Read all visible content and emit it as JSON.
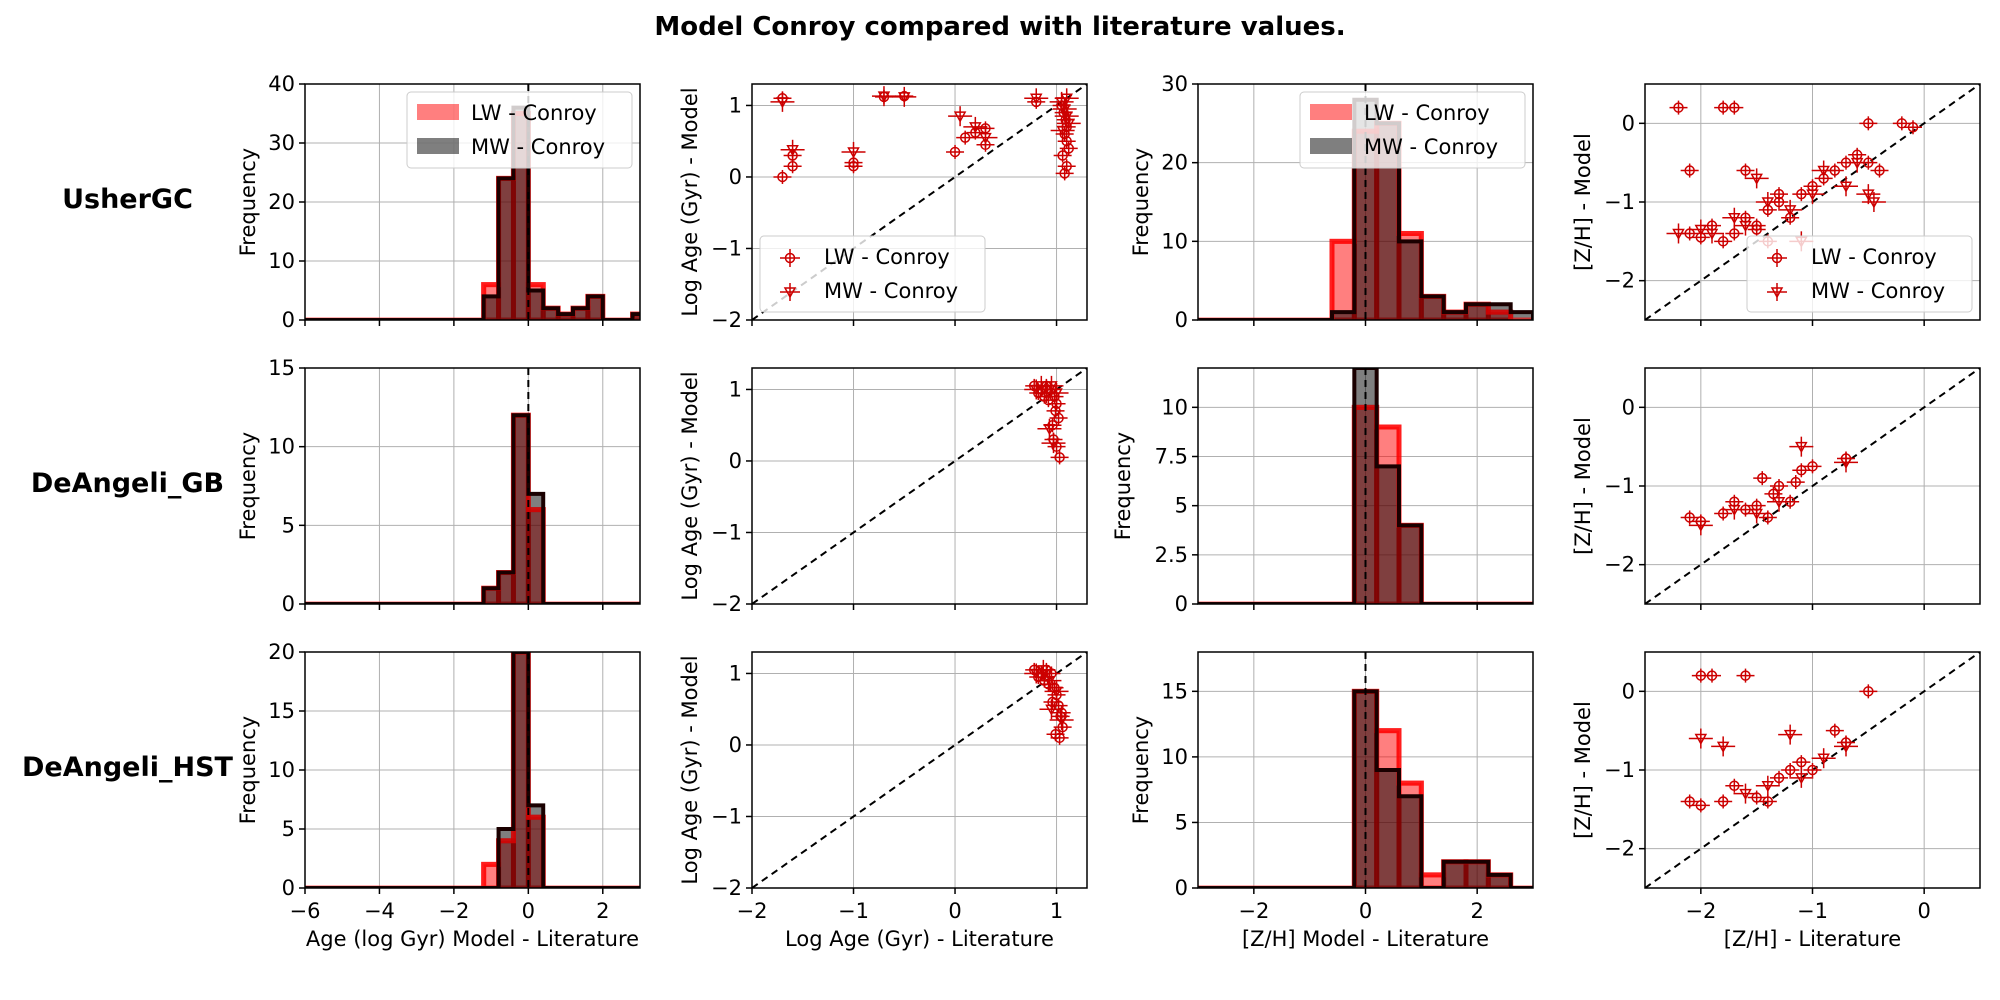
{
  "title": "Model Conroy compared with literature values.",
  "rows": [
    "UsherGC",
    "DeAngeli_GB",
    "DeAngeli_HST"
  ],
  "colors": {
    "lw": "#ff0000",
    "mw": "#000000",
    "err": "#cc0000",
    "grid": "#b0b0b0"
  },
  "legend": {
    "lw": "LW - Conroy",
    "mw": "MW - Conroy"
  },
  "chart_data": [
    {
      "type": "bar",
      "panel": "UsherGC-age-hist",
      "xlabel": "",
      "ylabel": "Frequency",
      "xlim": [
        -6,
        3
      ],
      "ylim": [
        0,
        40
      ],
      "yticks": [
        0,
        10,
        20,
        30,
        40
      ],
      "xticks": [
        -6,
        -4,
        -2,
        0,
        2
      ],
      "bin_width": 0.4,
      "legend": "top-right",
      "grid": true,
      "vline": 0,
      "series": [
        {
          "name": "LW - Conroy",
          "x": [
            -1.2,
            -0.8,
            -0.4,
            0.0,
            0.4,
            0.8,
            1.2,
            1.6,
            2.0,
            2.4,
            2.8
          ],
          "values": [
            6,
            24,
            35,
            6,
            2,
            1,
            2,
            4,
            0,
            0,
            1
          ]
        },
        {
          "name": "MW - Conroy",
          "x": [
            -1.2,
            -0.8,
            -0.4,
            0.0,
            0.4,
            0.8,
            1.2,
            1.6,
            2.0,
            2.4,
            2.8
          ],
          "values": [
            4,
            24,
            36,
            5,
            2,
            1,
            2,
            4,
            0,
            0,
            1
          ]
        }
      ]
    },
    {
      "type": "scatter",
      "panel": "UsherGC-age-scatter",
      "xlabel": "",
      "ylabel": "Log Age (Gyr) - Model",
      "xlim": [
        -2,
        1.3
      ],
      "ylim": [
        -2,
        1.3
      ],
      "yticks": [
        -2,
        -1,
        0,
        1
      ],
      "xticks": [
        -2,
        -1,
        0,
        1
      ],
      "legend": "lower-left",
      "grid": true,
      "one_to_one": true,
      "series": [
        {
          "name": "LW - Conroy",
          "x": [
            -1.7,
            -1.7,
            -1.6,
            -1.6,
            -1.0,
            -1.0,
            -0.7,
            -0.5,
            0.0,
            0.1,
            0.2,
            0.3,
            0.3,
            0.8,
            1.05,
            1.07,
            1.09,
            1.1,
            1.08,
            1.1,
            1.12,
            1.06,
            1.1,
            1.08
          ],
          "y": [
            1.1,
            0.0,
            0.3,
            0.15,
            0.2,
            0.15,
            1.12,
            1.13,
            0.35,
            0.55,
            0.62,
            0.45,
            0.68,
            1.05,
            1.0,
            0.9,
            0.8,
            0.7,
            0.6,
            0.5,
            0.4,
            0.3,
            0.15,
            0.05
          ]
        },
        {
          "name": "MW - Conroy",
          "x": [
            -1.7,
            -1.6,
            -1.0,
            -0.7,
            -0.5,
            0.05,
            0.2,
            0.3,
            0.8,
            1.05,
            1.08,
            1.1,
            1.12,
            1.06,
            1.1
          ],
          "y": [
            1.05,
            0.38,
            0.35,
            1.13,
            1.12,
            0.85,
            0.7,
            0.55,
            1.1,
            1.05,
            0.95,
            0.85,
            0.75,
            0.65,
            1.1
          ]
        }
      ]
    },
    {
      "type": "bar",
      "panel": "UsherGC-zh-hist",
      "xlabel": "",
      "ylabel": "Frequency",
      "xlim": [
        -3,
        3
      ],
      "ylim": [
        0,
        30
      ],
      "yticks": [
        0,
        10,
        20,
        30
      ],
      "xticks": [
        -2,
        0,
        2
      ],
      "bin_width": 0.4,
      "legend": "top-right",
      "grid": true,
      "vline": 0,
      "series": [
        {
          "name": "LW - Conroy",
          "x": [
            -1.0,
            -0.6,
            -0.2,
            0.2,
            0.6,
            1.0,
            1.4,
            1.8,
            2.2,
            2.6
          ],
          "values": [
            0,
            10,
            24,
            25,
            11,
            3,
            1,
            2,
            1,
            0
          ]
        },
        {
          "name": "MW - Conroy",
          "x": [
            -1.0,
            -0.6,
            -0.2,
            0.2,
            0.6,
            1.0,
            1.4,
            1.8,
            2.2,
            2.6
          ],
          "values": [
            0,
            1,
            28,
            25,
            10,
            3,
            1,
            2,
            2,
            1
          ]
        }
      ]
    },
    {
      "type": "scatter",
      "panel": "UsherGC-zh-scatter",
      "xlabel": "",
      "ylabel": "[Z/H] - Model",
      "xlim": [
        -2.5,
        0.5
      ],
      "ylim": [
        -2.5,
        0.5
      ],
      "yticks": [
        -2,
        -1,
        0
      ],
      "xticks": [
        -2,
        -1,
        0
      ],
      "legend": "lower-right",
      "grid": true,
      "one_to_one": true,
      "series": [
        {
          "name": "LW - Conroy",
          "x": [
            -2.2,
            -2.1,
            -2.0,
            -1.9,
            -1.8,
            -1.7,
            -1.6,
            -1.5,
            -1.4,
            -1.3,
            -1.2,
            -1.1,
            -1.0,
            -0.9,
            -0.8,
            -0.7,
            -0.6,
            -0.5,
            -0.4,
            -1.8,
            -1.7,
            -1.6,
            -1.3,
            -0.5,
            -0.2,
            -0.1,
            -1.5,
            -1.4,
            -2.1
          ],
          "y": [
            0.2,
            -1.4,
            -1.45,
            -1.3,
            -1.5,
            -1.4,
            -1.2,
            -1.35,
            -1.1,
            -1.0,
            -1.2,
            -0.9,
            -0.8,
            -0.7,
            -0.6,
            -0.5,
            -0.4,
            -0.5,
            -0.6,
            0.2,
            0.2,
            -0.6,
            -0.9,
            0.0,
            0.0,
            -0.05,
            -1.3,
            -1.5,
            -0.6
          ]
        },
        {
          "name": "MW - Conroy",
          "x": [
            -2.0,
            -1.9,
            -1.7,
            -1.5,
            -1.4,
            -1.2,
            -1.0,
            -0.9,
            -0.7,
            -0.6,
            -0.5,
            -0.45,
            -2.2,
            -1.6,
            -1.1
          ],
          "y": [
            -1.35,
            -1.4,
            -1.2,
            -0.7,
            -1.0,
            -1.1,
            -0.9,
            -0.6,
            -0.8,
            -0.5,
            -0.9,
            -1.0,
            -1.4,
            -1.3,
            -1.5
          ]
        }
      ]
    },
    {
      "type": "bar",
      "panel": "DeAngeli_GB-age-hist",
      "xlabel": "",
      "ylabel": "Frequency",
      "xlim": [
        -6,
        3
      ],
      "ylim": [
        0,
        15
      ],
      "yticks": [
        0,
        5,
        10,
        15
      ],
      "xticks": [
        -6,
        -4,
        -2,
        0,
        2
      ],
      "bin_width": 0.4,
      "legend": "none",
      "grid": true,
      "vline": 0,
      "series": [
        {
          "name": "LW - Conroy",
          "x": [
            -1.2,
            -0.8,
            -0.4,
            0.0,
            0.4
          ],
          "values": [
            1,
            2,
            12,
            6,
            0
          ]
        },
        {
          "name": "MW - Conroy",
          "x": [
            -1.2,
            -0.8,
            -0.4,
            0.0,
            0.4
          ],
          "values": [
            1,
            2,
            12,
            7,
            0
          ]
        }
      ]
    },
    {
      "type": "scatter",
      "panel": "DeAngeli_GB-age-scatter",
      "xlabel": "",
      "ylabel": "Log Age (Gyr) - Model",
      "xlim": [
        -2,
        1.3
      ],
      "ylim": [
        -2,
        1.3
      ],
      "yticks": [
        -2,
        -1,
        0,
        1
      ],
      "xticks": [
        -2,
        -1,
        0,
        1
      ],
      "legend": "none",
      "grid": true,
      "one_to_one": true,
      "series": [
        {
          "name": "LW - Conroy",
          "x": [
            0.78,
            0.82,
            0.85,
            0.88,
            0.9,
            0.92,
            0.95,
            0.98,
            1.0,
            1.02,
            0.96,
            0.97,
            1.0,
            1.03,
            0.99
          ],
          "y": [
            1.05,
            0.95,
            1.0,
            0.9,
            1.05,
            0.85,
            1.0,
            0.9,
            0.8,
            0.6,
            0.5,
            0.3,
            0.2,
            0.05,
            0.7
          ]
        },
        {
          "name": "MW - Conroy",
          "x": [
            0.8,
            0.85,
            0.9,
            0.95,
            1.0,
            0.93,
            0.97
          ],
          "y": [
            1.0,
            1.05,
            0.95,
            1.05,
            0.95,
            0.45,
            0.25
          ]
        }
      ]
    },
    {
      "type": "bar",
      "panel": "DeAngeli_GB-zh-hist",
      "xlabel": "",
      "ylabel": "Frequency",
      "xlim": [
        -3,
        3
      ],
      "ylim": [
        0,
        12
      ],
      "yticks": [
        0,
        2.5,
        5.0,
        7.5,
        10.0
      ],
      "xticks": [
        -2,
        0,
        2
      ],
      "bin_width": 0.4,
      "legend": "none",
      "grid": true,
      "vline": 0,
      "series": [
        {
          "name": "LW - Conroy",
          "x": [
            -0.2,
            0.2,
            0.6
          ],
          "values": [
            10,
            9,
            4
          ]
        },
        {
          "name": "MW - Conroy",
          "x": [
            -0.2,
            0.2,
            0.6
          ],
          "values": [
            12,
            7,
            4
          ]
        }
      ]
    },
    {
      "type": "scatter",
      "panel": "DeAngeli_GB-zh-scatter",
      "xlabel": "",
      "ylabel": "[Z/H] - Model",
      "xlim": [
        -2.5,
        0.5
      ],
      "ylim": [
        -2.5,
        0.5
      ],
      "yticks": [
        -2,
        -1,
        0
      ],
      "xticks": [
        -2,
        -1,
        0
      ],
      "legend": "none",
      "grid": true,
      "one_to_one": true,
      "series": [
        {
          "name": "LW - Conroy",
          "x": [
            -2.1,
            -2.0,
            -1.8,
            -1.7,
            -1.6,
            -1.5,
            -1.45,
            -1.4,
            -1.35,
            -1.3,
            -1.2,
            -1.15,
            -1.1,
            -1.0,
            -0.7
          ],
          "y": [
            -1.4,
            -1.45,
            -1.35,
            -1.2,
            -1.3,
            -1.25,
            -0.9,
            -1.4,
            -1.1,
            -1.0,
            -1.2,
            -0.95,
            -0.8,
            -0.75,
            -0.65
          ]
        },
        {
          "name": "MW - Conroy",
          "x": [
            -2.0,
            -1.7,
            -1.5,
            -1.3,
            -1.1,
            -0.7
          ],
          "y": [
            -1.5,
            -1.3,
            -1.35,
            -1.2,
            -0.5,
            -0.7
          ]
        }
      ]
    },
    {
      "type": "bar",
      "panel": "DeAngeli_HST-age-hist",
      "xlabel": "Age (log Gyr) Model - Literature",
      "ylabel": "Frequency",
      "xlim": [
        -6,
        3
      ],
      "ylim": [
        0,
        20
      ],
      "yticks": [
        0,
        5,
        10,
        15,
        20
      ],
      "xticks": [
        -6,
        -4,
        -2,
        0,
        2
      ],
      "bin_width": 0.4,
      "legend": "none",
      "grid": true,
      "vline": 0,
      "series": [
        {
          "name": "LW - Conroy",
          "x": [
            -1.2,
            -0.8,
            -0.4,
            0.0,
            0.4
          ],
          "values": [
            2,
            4,
            20,
            6,
            0
          ]
        },
        {
          "name": "MW - Conroy",
          "x": [
            -1.2,
            -0.8,
            -0.4,
            0.0,
            0.4
          ],
          "values": [
            0,
            5,
            20,
            7,
            0
          ]
        }
      ]
    },
    {
      "type": "scatter",
      "panel": "DeAngeli_HST-age-scatter",
      "xlabel": "Log Age (Gyr) - Literature",
      "ylabel": "Log Age (Gyr) - Model",
      "xlim": [
        -2,
        1.3
      ],
      "ylim": [
        -2,
        1.3
      ],
      "yticks": [
        -2,
        -1,
        0,
        1
      ],
      "xticks": [
        -2,
        -1,
        0,
        1
      ],
      "legend": "none",
      "grid": true,
      "one_to_one": true,
      "series": [
        {
          "name": "LW - Conroy",
          "x": [
            0.78,
            0.82,
            0.85,
            0.88,
            0.9,
            0.92,
            0.95,
            0.98,
            1.0,
            1.02,
            1.04,
            1.06,
            0.96,
            0.99,
            1.03,
            1.05
          ],
          "y": [
            1.05,
            0.95,
            1.0,
            0.9,
            1.05,
            0.85,
            1.0,
            0.8,
            0.7,
            0.55,
            0.4,
            0.25,
            0.6,
            0.15,
            0.1,
            0.45
          ]
        },
        {
          "name": "MW - Conroy",
          "x": [
            0.8,
            0.87,
            0.93,
            1.0,
            1.05,
            0.95
          ],
          "y": [
            1.0,
            1.05,
            0.9,
            0.75,
            0.35,
            0.5
          ]
        }
      ]
    },
    {
      "type": "bar",
      "panel": "DeAngeli_HST-zh-hist",
      "xlabel": "[Z/H] Model - Literature",
      "ylabel": "Frequency",
      "xlim": [
        -3,
        3
      ],
      "ylim": [
        0,
        18
      ],
      "yticks": [
        0,
        5,
        10,
        15
      ],
      "xticks": [
        -2,
        0,
        2
      ],
      "bin_width": 0.4,
      "legend": "none",
      "grid": true,
      "vline": 0,
      "series": [
        {
          "name": "LW - Conroy",
          "x": [
            -0.2,
            0.2,
            0.6,
            1.0,
            1.4,
            1.8,
            2.2
          ],
          "values": [
            15,
            12,
            8,
            1,
            2,
            2,
            1
          ]
        },
        {
          "name": "MW - Conroy",
          "x": [
            -0.2,
            0.2,
            0.6,
            1.0,
            1.4,
            1.8,
            2.2
          ],
          "values": [
            15,
            9,
            7,
            0,
            2,
            2,
            1
          ]
        }
      ]
    },
    {
      "type": "scatter",
      "panel": "DeAngeli_HST-zh-scatter",
      "xlabel": "[Z/H] - Literature",
      "ylabel": "[Z/H] - Model",
      "xlim": [
        -2.5,
        0.5
      ],
      "ylim": [
        -2.5,
        0.5
      ],
      "yticks": [
        -2,
        -1,
        0
      ],
      "xticks": [
        -2,
        -1,
        0
      ],
      "legend": "none",
      "grid": true,
      "one_to_one": true,
      "series": [
        {
          "name": "LW - Conroy",
          "x": [
            -2.0,
            -1.9,
            -1.6,
            -2.1,
            -2.0,
            -1.8,
            -1.7,
            -1.5,
            -1.4,
            -1.3,
            -1.2,
            -1.1,
            -1.0,
            -0.8,
            -0.7,
            -0.5
          ],
          "y": [
            0.2,
            0.2,
            0.2,
            -1.4,
            -1.45,
            -1.4,
            -1.2,
            -1.35,
            -1.4,
            -1.1,
            -1.0,
            -0.9,
            -1.0,
            -0.5,
            -0.65,
            0.0
          ]
        },
        {
          "name": "MW - Conroy",
          "x": [
            -2.0,
            -1.8,
            -1.6,
            -1.4,
            -1.2,
            -1.1,
            -0.7,
            -0.9
          ],
          "y": [
            -0.6,
            -0.7,
            -1.3,
            -1.2,
            -0.55,
            -1.1,
            -0.7,
            -0.85
          ]
        }
      ]
    }
  ]
}
